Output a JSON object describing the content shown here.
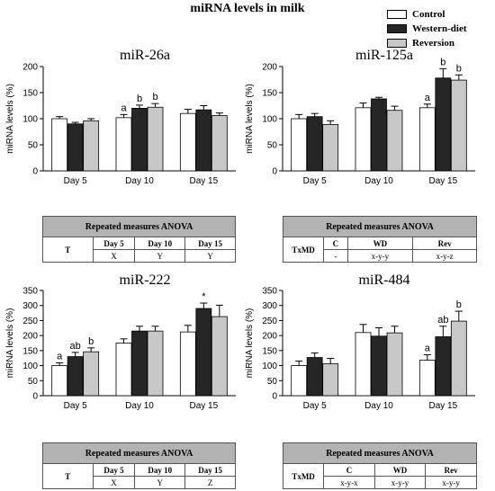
{
  "figure_title": "miRNA levels in milk",
  "legend": [
    {
      "label": "Control",
      "color": "#ffffff"
    },
    {
      "label": "Western-diet",
      "color": "#262626"
    },
    {
      "label": "Reversion",
      "color": "#c8c8c8"
    }
  ],
  "chart_data": [
    {
      "type": "bar",
      "title": "miR-26a",
      "ylabel": "miRNA levels (%)",
      "ylim": [
        0,
        200
      ],
      "yticks": [
        "0",
        "50",
        "100",
        "150",
        "200"
      ],
      "categories": [
        "Day 5",
        "Day 10",
        "Day 15"
      ],
      "series": [
        {
          "name": "Control",
          "values": [
            100,
            102,
            110
          ],
          "errors": [
            4,
            6,
            8
          ]
        },
        {
          "name": "Western-diet",
          "values": [
            90,
            120,
            117
          ],
          "errors": [
            3,
            6,
            8
          ]
        },
        {
          "name": "Reversion",
          "values": [
            96,
            122,
            106
          ],
          "errors": [
            4,
            7,
            5
          ]
        }
      ],
      "annotations": [
        {
          "category": 1,
          "series": 0,
          "text": "a"
        },
        {
          "category": 1,
          "series": 1,
          "text": "b"
        },
        {
          "category": 1,
          "series": 2,
          "text": "b"
        }
      ]
    },
    {
      "type": "bar",
      "title": "miR-125a",
      "ylabel": "miRNA levels (%)",
      "ylim": [
        0,
        200
      ],
      "yticks": [
        "0",
        "50",
        "100",
        "150",
        "200"
      ],
      "categories": [
        "Day 5",
        "Day 10",
        "Day 15"
      ],
      "series": [
        {
          "name": "Control",
          "values": [
            100,
            121,
            121
          ],
          "errors": [
            8,
            9,
            7
          ]
        },
        {
          "name": "Western-diet",
          "values": [
            104,
            138,
            178
          ],
          "errors": [
            6,
            3,
            18
          ]
        },
        {
          "name": "Reversion",
          "values": [
            89,
            116,
            174
          ],
          "errors": [
            7,
            8,
            10
          ]
        }
      ],
      "annotations": [
        {
          "category": 2,
          "series": 0,
          "text": "a"
        },
        {
          "category": 2,
          "series": 1,
          "text": "b"
        },
        {
          "category": 2,
          "series": 2,
          "text": "b"
        }
      ]
    },
    {
      "type": "bar",
      "title": "miR-222",
      "ylabel": "miRNA levels (%)",
      "ylim": [
        0,
        350
      ],
      "yticks": [
        "0",
        "50",
        "100",
        "150",
        "200",
        "250",
        "300",
        "350"
      ],
      "categories": [
        "Day 5",
        "Day 10",
        "Day 15"
      ],
      "series": [
        {
          "name": "Control",
          "values": [
            100,
            175,
            212
          ],
          "errors": [
            9,
            14,
            22
          ]
        },
        {
          "name": "Western-diet",
          "values": [
            130,
            215,
            290
          ],
          "errors": [
            14,
            16,
            18
          ]
        },
        {
          "name": "Reversion",
          "values": [
            146,
            215,
            263
          ],
          "errors": [
            13,
            16,
            38
          ]
        }
      ],
      "annotations": [
        {
          "category": 0,
          "series": 0,
          "text": "a"
        },
        {
          "category": 0,
          "series": 1,
          "text": "ab"
        },
        {
          "category": 0,
          "series": 2,
          "text": "b"
        },
        {
          "category": 2,
          "series": 1,
          "text": "*"
        }
      ]
    },
    {
      "type": "bar",
      "title": "miR-484",
      "ylabel": "miRNA levels (%)",
      "ylim": [
        0,
        350
      ],
      "yticks": [
        "0",
        "50",
        "100",
        "150",
        "200",
        "250",
        "300",
        "350"
      ],
      "categories": [
        "Day 5",
        "Day 10",
        "Day 15"
      ],
      "series": [
        {
          "name": "Control",
          "values": [
            100,
            210,
            118
          ],
          "errors": [
            15,
            27,
            18
          ]
        },
        {
          "name": "Western-diet",
          "values": [
            127,
            198,
            196
          ],
          "errors": [
            15,
            28,
            35
          ]
        },
        {
          "name": "Reversion",
          "values": [
            106,
            209,
            248
          ],
          "errors": [
            18,
            22,
            33
          ]
        }
      ],
      "annotations": [
        {
          "category": 2,
          "series": 0,
          "text": "a"
        },
        {
          "category": 2,
          "series": 1,
          "text": "ab"
        },
        {
          "category": 2,
          "series": 2,
          "text": "b"
        }
      ]
    }
  ],
  "tables": [
    {
      "header": "Repeated measures ANOVA",
      "row_label": "T",
      "columns": [
        "Day 5",
        "Day 10",
        "Day 15"
      ],
      "values": [
        "X",
        "Y",
        "Y"
      ]
    },
    {
      "header": "Repeated measures ANOVA",
      "row_label": "TxMD",
      "columns": [
        "C",
        "WD",
        "Rev"
      ],
      "values": [
        "-",
        "x-y-y",
        "x-y-z"
      ]
    },
    {
      "header": "Repeated measures ANOVA",
      "row_label": "T",
      "columns": [
        "Day 5",
        "Day 10",
        "Day 15"
      ],
      "values": [
        "X",
        "Y",
        "Z"
      ]
    },
    {
      "header": "Repeated measures ANOVA",
      "row_label": "TxMD",
      "columns": [
        "C",
        "WD",
        "Rev"
      ],
      "values": [
        "x-y-x",
        "x-y-y",
        "x-y-y"
      ]
    }
  ]
}
